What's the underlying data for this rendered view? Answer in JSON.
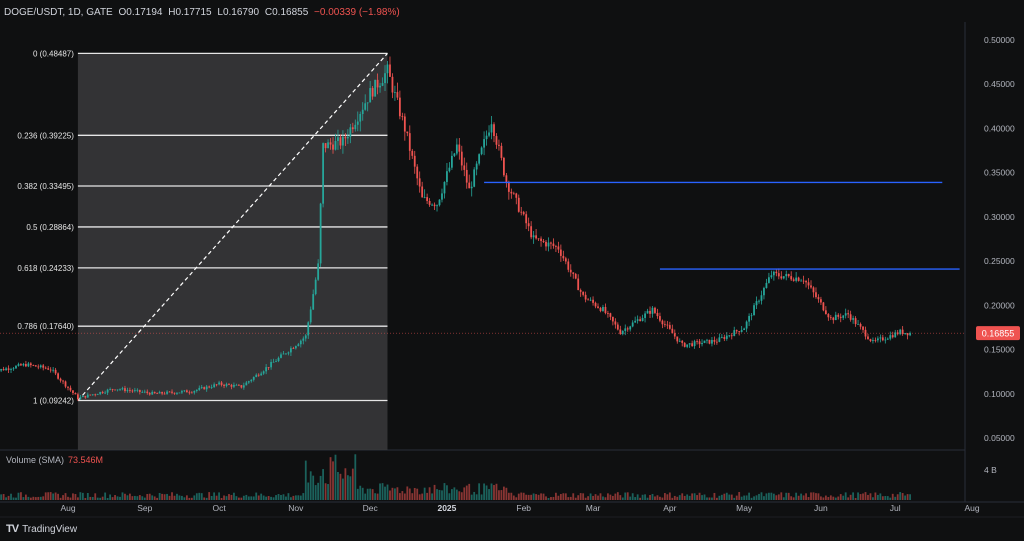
{
  "header": {
    "symbol": "DOGE/USDT, 1D, GATE",
    "open": "O0.17194",
    "high": "H0.17715",
    "low": "L0.16790",
    "close": "C0.16855",
    "change": "−0.00339 (−1.98%)"
  },
  "volume_label": {
    "name": "Volume (SMA)",
    "value": "73.546M"
  },
  "branding": {
    "logo": "TV",
    "name": "TradingView"
  },
  "colors": {
    "up": "#26a69a",
    "down": "#ef5350",
    "bg": "#0f1011",
    "fib_zone": "#3a3a3c",
    "level_line": "#2962ff",
    "price_tag": "#ef5350"
  },
  "chart_data": {
    "type": "candlestick",
    "title": "DOGE/USDT, 1D, GATE",
    "x_ticks": [
      "Aug",
      "Sep",
      "Oct",
      "Nov",
      "Dec",
      "2025",
      "Feb",
      "Mar",
      "Apr",
      "May",
      "Jun",
      "Jul",
      "Aug"
    ],
    "y_ticks": [
      "0.50000",
      "0.45000",
      "0.40000",
      "0.35000",
      "0.30000",
      "0.25000",
      "0.20000",
      "0.15000",
      "0.10000",
      "0.05000"
    ],
    "ylim": [
      0.04,
      0.52
    ],
    "current_price": "0.16855",
    "volume_axis_tick": "4 B",
    "fibonacci": {
      "from_date": "2024-08-05",
      "to_date": "2024-12-08",
      "levels": [
        {
          "label": "0 (0.48487)",
          "price": 0.48487
        },
        {
          "label": "0.236 (0.39225)",
          "price": 0.39225
        },
        {
          "label": "0.382 (0.33495)",
          "price": 0.33495
        },
        {
          "label": "0.5 (0.28864)",
          "price": 0.28864
        },
        {
          "label": "0.618 (0.24233)",
          "price": 0.24233
        },
        {
          "label": "0.786 (0.17640)",
          "price": 0.1764
        },
        {
          "label": "1 (0.09242)",
          "price": 0.09242
        }
      ]
    },
    "horizontal_lines": [
      {
        "price": 0.339,
        "from_date": "2025-01-16",
        "to_date": "2025-07-20"
      },
      {
        "price": 0.241,
        "from_date": "2025-03-28",
        "to_date": "2025-07-27"
      }
    ],
    "price_path": [
      {
        "date": "2024-07-01",
        "close": 0.125
      },
      {
        "date": "2024-07-15",
        "close": 0.133
      },
      {
        "date": "2024-07-25",
        "close": 0.128
      },
      {
        "date": "2024-08-05",
        "close": 0.095
      },
      {
        "date": "2024-08-20",
        "close": 0.106
      },
      {
        "date": "2024-09-05",
        "close": 0.1
      },
      {
        "date": "2024-09-20",
        "close": 0.103
      },
      {
        "date": "2024-10-01",
        "close": 0.111
      },
      {
        "date": "2024-10-10",
        "close": 0.108
      },
      {
        "date": "2024-10-25",
        "close": 0.14
      },
      {
        "date": "2024-11-05",
        "close": 0.165
      },
      {
        "date": "2024-11-10",
        "close": 0.245
      },
      {
        "date": "2024-11-12",
        "close": 0.38
      },
      {
        "date": "2024-11-20",
        "close": 0.385
      },
      {
        "date": "2024-12-01",
        "close": 0.44
      },
      {
        "date": "2024-12-08",
        "close": 0.465
      },
      {
        "date": "2024-12-15",
        "close": 0.4
      },
      {
        "date": "2024-12-22",
        "close": 0.32
      },
      {
        "date": "2024-12-28",
        "close": 0.315
      },
      {
        "date": "2025-01-05",
        "close": 0.38
      },
      {
        "date": "2025-01-10",
        "close": 0.33
      },
      {
        "date": "2025-01-19",
        "close": 0.41
      },
      {
        "date": "2025-01-25",
        "close": 0.34
      },
      {
        "date": "2025-02-05",
        "close": 0.275
      },
      {
        "date": "2025-02-15",
        "close": 0.265
      },
      {
        "date": "2025-02-25",
        "close": 0.21
      },
      {
        "date": "2025-03-05",
        "close": 0.195
      },
      {
        "date": "2025-03-12",
        "close": 0.17
      },
      {
        "date": "2025-03-25",
        "close": 0.195
      },
      {
        "date": "2025-04-06",
        "close": 0.155
      },
      {
        "date": "2025-04-20",
        "close": 0.16
      },
      {
        "date": "2025-05-01",
        "close": 0.175
      },
      {
        "date": "2025-05-12",
        "close": 0.235
      },
      {
        "date": "2025-05-25",
        "close": 0.23
      },
      {
        "date": "2025-06-05",
        "close": 0.185
      },
      {
        "date": "2025-06-12",
        "close": 0.19
      },
      {
        "date": "2025-06-22",
        "close": 0.158
      },
      {
        "date": "2025-07-03",
        "close": 0.17
      },
      {
        "date": "2025-07-07",
        "close": 0.16855
      }
    ]
  }
}
